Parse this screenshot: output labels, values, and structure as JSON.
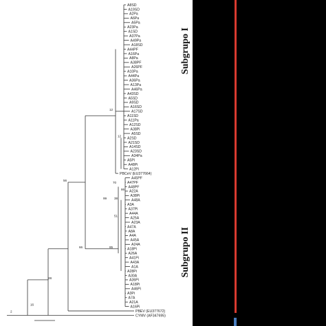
{
  "subgroups": [
    {
      "label": "Subgrupo I",
      "color": "#e03030"
    },
    {
      "label": "Subgrupo II",
      "color": "#e03030"
    }
  ],
  "panel": {
    "background": "#000000",
    "bar_color": "#d93a2f",
    "bar_color_2": "#4a7fc0"
  },
  "taxa": [
    "A8SD",
    "A19SD",
    "A2Pa",
    "A6Pa",
    "A5Pa",
    "A23Pa",
    "A1SD",
    "A37Pa",
    "A49Pa",
    "A18SD",
    "A44PF",
    "A16Pa",
    "A8Pa",
    "A38PF",
    "A26PF",
    "A10Pa",
    "A44Pa",
    "A36Pa",
    "A13Pa",
    "A46Pa",
    "A43SD",
    "A5SD",
    "A9SD",
    "A16SD",
    "A17SD",
    "A11SD",
    "A11Pa",
    "A12SD",
    "A38Pi",
    "A5SD",
    "A2SD",
    "A21SD",
    "A14SD",
    "A23SD",
    "A34Pa",
    "A5Pi",
    "A48Pi",
    "A12Pi",
    "PBCeV (EU377664)",
    "A45PF",
    "A47PF",
    "A48PF",
    "A22A",
    "A38Pi",
    "A48A",
    "A3A",
    "A37Pi",
    "A44A",
    "A25A",
    "A23A",
    "A47A",
    "A8A",
    "A4A",
    "A45A",
    "A24A",
    "A18Pi",
    "A26A",
    "A41Pi",
    "A43A",
    "A1A",
    "A28Pi",
    "A30A",
    "A36Pi",
    "A18Pi",
    "A46Pi",
    "A3Pi",
    "A7A",
    "A21A",
    "A16Pi",
    "PBEV (EU377672)",
    "CYMV (AF347695)"
  ],
  "bootstrap": [
    "12",
    "12",
    "70",
    "86",
    "85",
    "38",
    "99",
    "51",
    "66",
    "56",
    "28",
    "16",
    "2"
  ]
}
